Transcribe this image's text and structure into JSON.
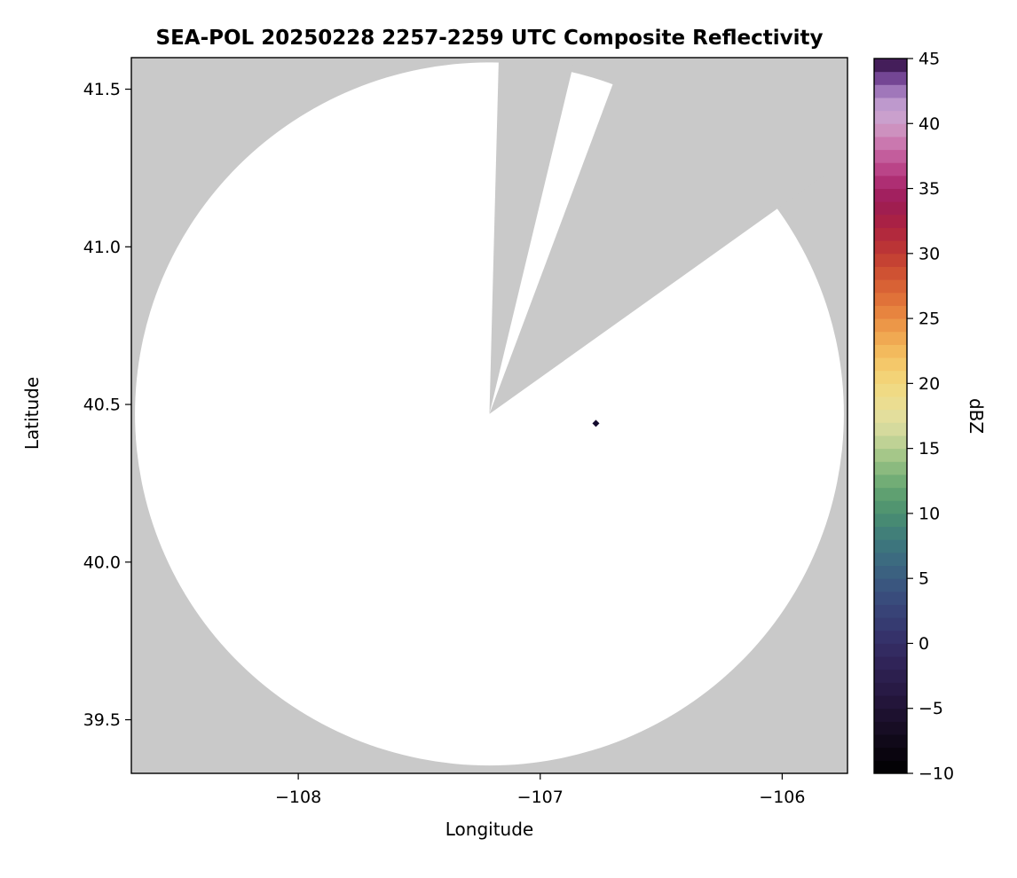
{
  "figure": {
    "background_color": "#ffffff"
  },
  "chart_data": {
    "type": "heatmap",
    "subtype": "radar-composite-reflectivity-map",
    "title": "SEA-POL 20250228 2257-2259 UTC Composite Reflectivity",
    "xlabel": "Longitude",
    "ylabel": "Latitude",
    "xlim": [
      -108.69,
      -105.73
    ],
    "ylim": [
      39.33,
      41.6
    ],
    "xticks": [
      -108,
      -107,
      -106
    ],
    "xtick_labels": [
      "−108",
      "−107",
      "−106"
    ],
    "yticks": [
      39.5,
      40.0,
      40.5,
      41.0,
      41.5
    ],
    "ytick_labels": [
      "39.5",
      "40.0",
      "40.5",
      "41.0",
      "41.5"
    ],
    "grid": false,
    "legend": "none",
    "no_data_color": "#c9c9c9",
    "coverage_color": "#ffffff",
    "radar": {
      "center_lon": -107.21,
      "center_lat": 40.47,
      "coverage_radius_lon_deg": 1.465,
      "coverage_radius_lat_deg": 1.115,
      "missing_sectors_azimuth_deg": [
        [
          1.5,
          13.5
        ],
        [
          20.5,
          54.5
        ]
      ]
    },
    "echoes": [
      {
        "lon": -106.77,
        "lat": 40.44,
        "dbz": 45,
        "color": "#140b2e"
      }
    ],
    "colorbar": {
      "label": "dBZ",
      "min": -10,
      "max": 45,
      "ticks": [
        -10,
        -5,
        0,
        5,
        10,
        15,
        20,
        25,
        30,
        35,
        40,
        45
      ],
      "tick_labels": [
        "−10",
        "−5",
        "0",
        "5",
        "10",
        "15",
        "20",
        "25",
        "30",
        "35",
        "40",
        "45"
      ],
      "color_stops": [
        [
          -10,
          "#000000"
        ],
        [
          -8,
          "#0d0714"
        ],
        [
          -6,
          "#1a0f29"
        ],
        [
          -4,
          "#261740"
        ],
        [
          -2,
          "#2e2153"
        ],
        [
          0,
          "#342e66"
        ],
        [
          2,
          "#373f74"
        ],
        [
          4,
          "#39507e"
        ],
        [
          6,
          "#3b6681"
        ],
        [
          8,
          "#3e7a7c"
        ],
        [
          10,
          "#4a8f70"
        ],
        [
          12,
          "#66a671"
        ],
        [
          14,
          "#97c083"
        ],
        [
          15,
          "#b2cd8f"
        ],
        [
          16,
          "#cbd79a"
        ],
        [
          17,
          "#dedda0"
        ],
        [
          18,
          "#e8df97"
        ],
        [
          20,
          "#f2d87d"
        ],
        [
          22,
          "#f4c263"
        ],
        [
          24,
          "#efa04c"
        ],
        [
          26,
          "#e47a3b"
        ],
        [
          28,
          "#d45a33"
        ],
        [
          30,
          "#c03a33"
        ],
        [
          32,
          "#ad2340"
        ],
        [
          34,
          "#9c1c55"
        ],
        [
          35,
          "#a82368"
        ],
        [
          37,
          "#c04f92"
        ],
        [
          39,
          "#cd86b8"
        ],
        [
          40,
          "#cc9cc6"
        ],
        [
          41,
          "#c7a3d4"
        ],
        [
          42,
          "#b48ec6"
        ],
        [
          43,
          "#8b5fae"
        ],
        [
          44,
          "#5c2d7a"
        ],
        [
          45,
          "#2b0f3a"
        ]
      ]
    }
  }
}
